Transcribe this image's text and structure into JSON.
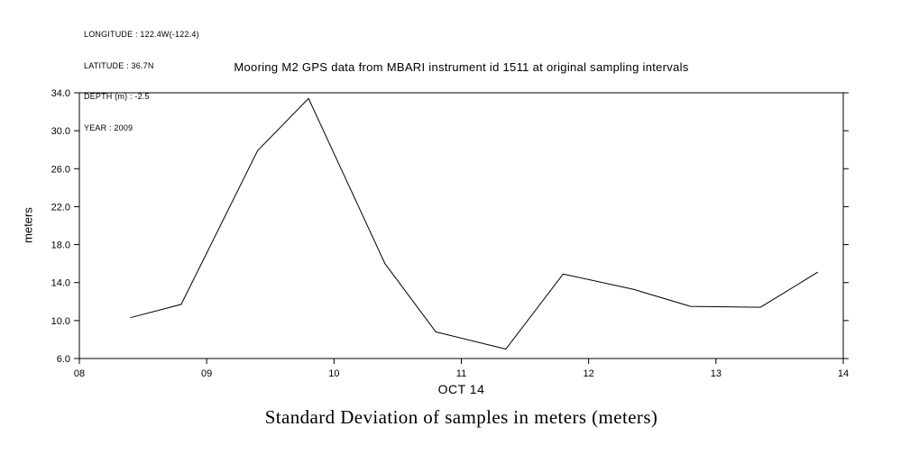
{
  "metadata": {
    "lines": [
      "LONGITUDE : 122.4W(-122.4)",
      "LATITUDE : 36.7N",
      "DEPTH (m) : -2.5",
      "YEAR : 2009"
    ]
  },
  "title": "Mooring M2 GPS data from MBARI instrument id 1511 at original sampling intervals",
  "caption": "Standard Deviation of samples in meters (meters)",
  "chart_data": {
    "type": "line",
    "title": "Mooring M2 GPS data from MBARI instrument id 1511 at original sampling intervals",
    "xlabel": "OCT 14",
    "ylabel": "meters",
    "xlim": [
      8,
      14
    ],
    "ylim": [
      6,
      34
    ],
    "xticks": [
      8,
      9,
      10,
      11,
      12,
      13,
      14
    ],
    "xtick_labels": [
      "08",
      "09",
      "10",
      "11",
      "12",
      "13",
      "14"
    ],
    "yticks": [
      6,
      10,
      14,
      18,
      22,
      26,
      30,
      34
    ],
    "ytick_labels": [
      "6.0",
      "10.0",
      "14.0",
      "18.0",
      "22.0",
      "26.0",
      "30.0",
      "34.0"
    ],
    "x": [
      8.4,
      8.8,
      9.4,
      9.8,
      10.4,
      10.8,
      11.35,
      11.8,
      12.35,
      12.8,
      13.35,
      13.8
    ],
    "y": [
      10.3,
      11.7,
      27.9,
      33.4,
      16.0,
      8.8,
      7.0,
      14.9,
      13.3,
      11.5,
      11.4,
      15.1
    ],
    "line_color": "#000000",
    "grid": false,
    "legend": false
  }
}
